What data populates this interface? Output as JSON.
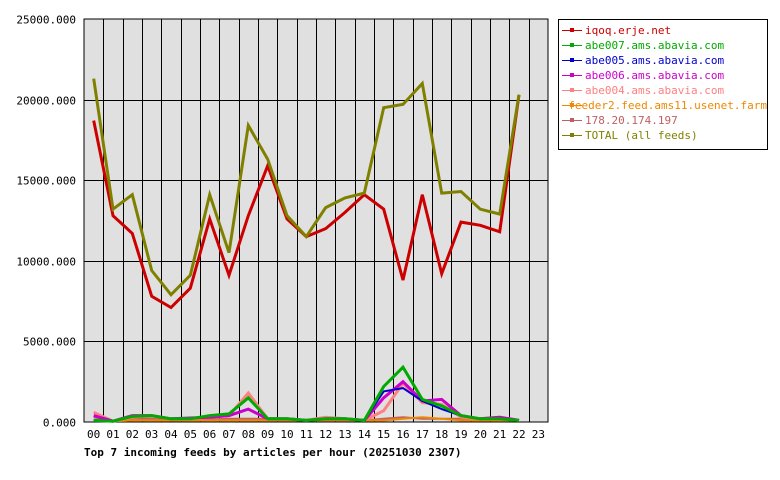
{
  "chart_data": {
    "type": "line",
    "title": "Top 7 incoming feeds by articles per hour (20251030 2307)",
    "xlabel": "",
    "ylabel": "",
    "ylim": [
      0,
      25000
    ],
    "yticks": [
      "0.000",
      "5000.000",
      "10000.000",
      "15000.000",
      "20000.000",
      "25000.000"
    ],
    "categories": [
      "00",
      "01",
      "02",
      "03",
      "04",
      "05",
      "06",
      "07",
      "08",
      "09",
      "10",
      "11",
      "12",
      "13",
      "14",
      "15",
      "16",
      "17",
      "18",
      "19",
      "20",
      "21",
      "22",
      "23"
    ],
    "grid": true,
    "legend_position": "right",
    "series": [
      {
        "name": "iqoq.erje.net",
        "color": "#cc0000",
        "width": 3,
        "values": [
          18700,
          12800,
          11700,
          7800,
          7100,
          8300,
          12600,
          9100,
          12800,
          15900,
          12600,
          11500,
          12000,
          13000,
          14100,
          13200,
          8800,
          14100,
          9200,
          12400,
          12200,
          11800,
          20300
        ]
      },
      {
        "name": "abe007.ams.abavia.com",
        "color": "#00aa00",
        "width": 3,
        "values": [
          100,
          50,
          350,
          400,
          200,
          200,
          400,
          500,
          1500,
          200,
          200,
          100,
          200,
          200,
          100,
          2200,
          3400,
          1400,
          1000,
          400,
          200,
          200,
          100
        ]
      },
      {
        "name": "abe005.ams.abavia.com",
        "color": "#0000cc",
        "width": 2,
        "values": [
          100,
          50,
          350,
          400,
          200,
          200,
          400,
          500,
          1500,
          200,
          200,
          100,
          200,
          200,
          100,
          1900,
          2100,
          1300,
          800,
          400,
          200,
          200,
          100
        ]
      },
      {
        "name": "abe006.ams.abavia.com",
        "color": "#cc00cc",
        "width": 3,
        "values": [
          400,
          50,
          400,
          400,
          200,
          250,
          300,
          400,
          800,
          200,
          200,
          100,
          200,
          200,
          100,
          1500,
          2500,
          1300,
          1400,
          400,
          200,
          300,
          100
        ]
      },
      {
        "name": "abe004.ams.abavia.com",
        "color": "#ff8080",
        "width": 3,
        "values": [
          600,
          50,
          300,
          400,
          200,
          200,
          300,
          400,
          1800,
          200,
          200,
          100,
          300,
          200,
          100,
          700,
          2400,
          1200,
          1100,
          300,
          200,
          300,
          100
        ]
      },
      {
        "name": "feeder2.feed.ams11.usenet.farm",
        "color": "#ee8800",
        "width": 2,
        "values": [
          100,
          50,
          100,
          100,
          100,
          100,
          100,
          100,
          100,
          100,
          100,
          100,
          100,
          100,
          100,
          100,
          200,
          300,
          200,
          100,
          100,
          100,
          100
        ]
      },
      {
        "name": "178.20.174.197",
        "color": "#c06060",
        "width": 2,
        "values": [
          300,
          50,
          200,
          200,
          100,
          150,
          150,
          200,
          200,
          200,
          200,
          100,
          200,
          200,
          100,
          200,
          300,
          200,
          200,
          200,
          200,
          200,
          100
        ]
      },
      {
        "name": "TOTAL (all feeds)",
        "color": "#808000",
        "width": 3,
        "values": [
          21300,
          13200,
          14100,
          9400,
          7900,
          9100,
          14100,
          10500,
          18400,
          16300,
          12800,
          11500,
          13300,
          13900,
          14200,
          19500,
          19700,
          21000,
          14200,
          14300,
          13200,
          12900,
          20300
        ]
      }
    ]
  },
  "legend": {
    "items": [
      {
        "label": "iqoq.erje.net",
        "color": "#cc0000"
      },
      {
        "label": "abe007.ams.abavia.com",
        "color": "#00aa00"
      },
      {
        "label": "abe005.ams.abavia.com",
        "color": "#0000cc"
      },
      {
        "label": "abe006.ams.abavia.com",
        "color": "#cc00cc"
      },
      {
        "label": "abe004.ams.abavia.com",
        "color": "#ff8080"
      },
      {
        "label": "feeder2.feed.ams11.usenet.farm",
        "color": "#ee8800"
      },
      {
        "label": "178.20.174.197",
        "color": "#c06060"
      },
      {
        "label": "TOTAL (all feeds)",
        "color": "#808000"
      }
    ]
  },
  "colors": {
    "plot_bg": "#e0e0e0",
    "grid": "#000000",
    "axis": "#000000"
  }
}
